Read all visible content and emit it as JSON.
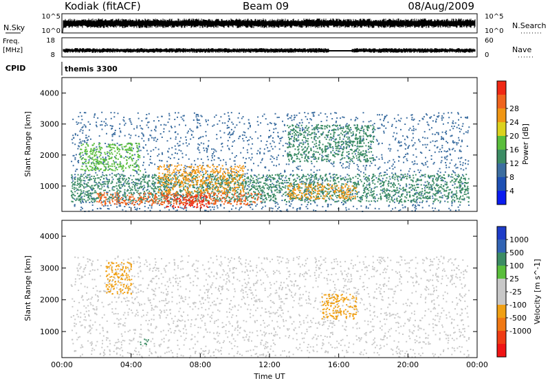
{
  "header": {
    "station": "Kodiak (fitACF)",
    "beam": "Beam 09",
    "date": "08/Aug/2009"
  },
  "top_panels": {
    "nsky_label": "N.Sky",
    "nsky_ticks": [
      "10^5",
      "10^0"
    ],
    "nsearch_label": "N.Search",
    "nsearch_ticks": [
      "10^5",
      "10^0"
    ],
    "freq_label": "Freq.",
    "freq_unit": "[MHz]",
    "freq_ticks": [
      "18",
      "8"
    ],
    "nave_label": "Nave",
    "nave_ticks": [
      "60",
      "0"
    ],
    "cpid_label": "CPID",
    "cpid_value": "themis 3300"
  },
  "colors": {
    "power": [
      "#0a1cf0",
      "#1e50b4",
      "#3c6ea0",
      "#3c8c64",
      "#5abe3c",
      "#dcd21e",
      "#f09614",
      "#f0641e",
      "#f02814"
    ],
    "velocity": [
      "#1e3cc8",
      "#3264b4",
      "#3c8c64",
      "#5abe3c",
      "#c8c8c8",
      "#c8c8c8",
      "#f0a014",
      "#f07814",
      "#f03c14",
      "#f01414"
    ],
    "nodata": "#ffffff"
  },
  "chart_data": [
    {
      "type": "heatmap",
      "name": "power",
      "ylabel": "Slant Range [km]",
      "x_ticks": [
        "00:00",
        "04:00",
        "08:00",
        "12:00",
        "16:00",
        "20:00",
        "00:00"
      ],
      "y_ticks": [
        "1000",
        "2000",
        "3000",
        "4000"
      ],
      "ylim": [
        180,
        4500
      ],
      "colorbar": {
        "label": "Power [dB]",
        "ticks": [
          "4",
          "8",
          "12",
          "16",
          "20",
          "24",
          "28"
        ],
        "range": [
          0,
          30
        ]
      },
      "regions": [
        {
          "t0": 0.5,
          "t1": 23.5,
          "r0": 200,
          "r1": 3400,
          "value": 8
        },
        {
          "t0": 0.5,
          "t1": 23.5,
          "r0": 500,
          "r1": 1400,
          "value": 10
        },
        {
          "t0": 1.0,
          "t1": 4.5,
          "r0": 1500,
          "r1": 2400,
          "value": 14
        },
        {
          "t0": 2.0,
          "t1": 11.5,
          "r0": 400,
          "r1": 800,
          "value": 26
        },
        {
          "t0": 5.5,
          "t1": 10.5,
          "r0": 800,
          "r1": 1700,
          "value": 22
        },
        {
          "t0": 6.0,
          "t1": 8.5,
          "r0": 300,
          "r1": 700,
          "value": 29
        },
        {
          "t0": 13.0,
          "t1": 18.0,
          "r0": 1800,
          "r1": 3000,
          "value": 13
        },
        {
          "t0": 13.0,
          "t1": 17.0,
          "r0": 600,
          "r1": 1100,
          "value": 21
        }
      ]
    },
    {
      "type": "heatmap",
      "name": "velocity",
      "ylabel": "Slant Range [km]",
      "xlabel": "Time UT",
      "x_ticks": [
        "00:00",
        "04:00",
        "08:00",
        "12:00",
        "16:00",
        "20:00",
        "00:00"
      ],
      "y_ticks": [
        "1000",
        "2000",
        "3000",
        "4000"
      ],
      "ylim": [
        180,
        4500
      ],
      "colorbar": {
        "label": "Velocity [m s^-1]",
        "ticks": [
          "1000",
          "500",
          "100",
          "25",
          "-25",
          "-100",
          "-500",
          "-1000"
        ]
      },
      "regions": [
        {
          "t0": 0.5,
          "t1": 23.5,
          "r0": 200,
          "r1": 3400,
          "value": 0
        },
        {
          "t0": 2.5,
          "t1": 4.0,
          "r0": 2200,
          "r1": 3200,
          "value": -150
        },
        {
          "t0": 15.0,
          "t1": 17.0,
          "r0": 1400,
          "r1": 2200,
          "value": -200
        },
        {
          "t0": 4.5,
          "t1": 5.0,
          "r0": 600,
          "r1": 800,
          "value": 150
        }
      ]
    }
  ]
}
